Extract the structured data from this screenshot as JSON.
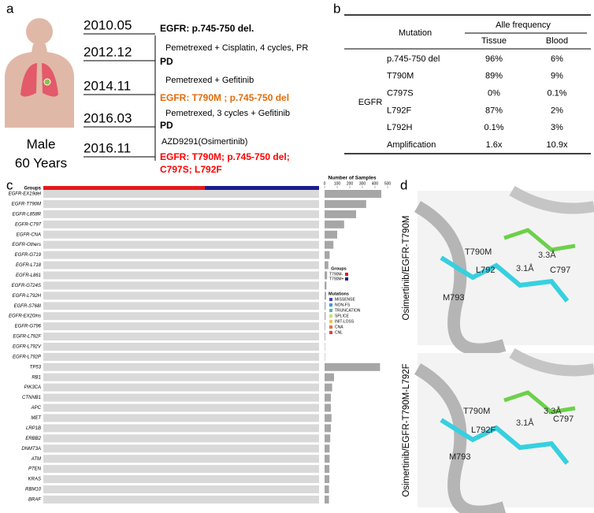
{
  "a": {
    "label": "a",
    "sex": "Male",
    "age": "60 Years",
    "dates": [
      "2010.05",
      "2012.12",
      "2014.11",
      "2016.03",
      "2016.11"
    ],
    "events": [
      {
        "text": "EGFR: p.745-750 del.",
        "bold": true,
        "color": "#000000"
      },
      {
        "text": "Pemetrexed + Cisplatin, 4 cycles, PR",
        "bold": false,
        "color": "#000000"
      },
      {
        "text": "PD",
        "bold": true,
        "color": "#000000"
      },
      {
        "text": "Pemetrexed + Gefitinib",
        "bold": false,
        "color": "#000000"
      },
      {
        "text": "EGFR: T790M ; p.745-750 del",
        "bold": true,
        "color": "#e46c0a"
      },
      {
        "text": "Pemetrexed, 3 cycles + Gefitinib",
        "bold": false,
        "color": "#000000"
      },
      {
        "text": "PD",
        "bold": true,
        "color": "#000000"
      },
      {
        "text": "AZD9291(Osimertinib)",
        "bold": false,
        "color": "#000000"
      },
      {
        "text": "EGFR: T790M; p.745-750 del;",
        "bold": true,
        "color": "#ff0000"
      },
      {
        "text": "C797S; L792F",
        "bold": true,
        "color": "#ff0000"
      }
    ]
  },
  "b": {
    "label": "b",
    "header": {
      "mutation": "Mutation",
      "freq": "Alle frequency",
      "tissue": "Tissue",
      "blood": "Blood"
    },
    "gene": "EGFR",
    "rows": [
      [
        "p.745-750 del",
        "96%",
        "6%"
      ],
      [
        "T790M",
        "89%",
        "9%"
      ],
      [
        "C797S",
        "0%",
        "0.1%"
      ],
      [
        "L792F",
        "87%",
        "2%"
      ],
      [
        "L792H",
        "0.1%",
        "3%"
      ],
      [
        "Amplification",
        "1.6x",
        "10.9x"
      ]
    ]
  },
  "c": {
    "label": "c",
    "groups_label": "Groups",
    "rows": [
      "EGFR-EX19del",
      "EGFR-T790M",
      "EGFR-L858R",
      "EGFR-C797",
      "EGFR-CNA",
      "EGFR-Others",
      "EGFR-G719",
      "EGFR-L718",
      "EGFR-L861",
      "EGFR-G724S",
      "EGFR-L792H",
      "EGFR-S768I",
      "EGFR-EX20ins",
      "EGFR-G796",
      "EGFR-L792F",
      "EGFR-L792V",
      "EGFR-L792P",
      "TP53",
      "RB1",
      "PIK3CA",
      "CTNNB1",
      "APC",
      "MET",
      "LRP1B",
      "ERBB2",
      "DNMT3A",
      "ATM",
      "PTEN",
      "KRAS",
      "RBM10",
      "BRAF"
    ],
    "counts": [
      450,
      330,
      250,
      155,
      100,
      70,
      40,
      30,
      20,
      15,
      12,
      8,
      8,
      5,
      5,
      3,
      3,
      440,
      75,
      60,
      50,
      50,
      55,
      50,
      45,
      40,
      40,
      38,
      38,
      35,
      35
    ],
    "axis_title": "Number of Samples",
    "xlim": [
      0,
      500
    ],
    "xticks": [
      0,
      100,
      200,
      300,
      400,
      500
    ],
    "bar_color": "#a6a6a6",
    "legend_groups": {
      "title": "Groups",
      "items": [
        {
          "name": "T790M-",
          "color": "#e41a1c"
        },
        {
          "name": "T790M+",
          "color": "#1c1c8c"
        }
      ]
    },
    "legend_mutations": {
      "title": "Mutations",
      "items": [
        {
          "name": "MISSENSE",
          "color": "#3a4aa8"
        },
        {
          "name": "NON-FS",
          "color": "#3d9bd6"
        },
        {
          "name": "TRUNCATION",
          "color": "#4dbb9a"
        },
        {
          "name": "SPLICE",
          "color": "#c9e26a"
        },
        {
          "name": "INIT-LOSS",
          "color": "#f0c060"
        },
        {
          "name": "CNA",
          "color": "#e8703a"
        },
        {
          "name": "CNL",
          "color": "#e03c4c"
        }
      ]
    }
  },
  "d": {
    "label": "d",
    "panels": [
      {
        "title": "Osimertinib/EGFR-T790M",
        "residues": [
          "T790M",
          "L792",
          "3.1Å",
          "3.3Å",
          "C797",
          "M793"
        ]
      },
      {
        "title": "Osimertinib/EGFR-T790M-L792F",
        "residues": [
          "T790M",
          "L792F",
          "3.1Å",
          "3.3Å",
          "C797",
          "M793"
        ]
      }
    ]
  }
}
